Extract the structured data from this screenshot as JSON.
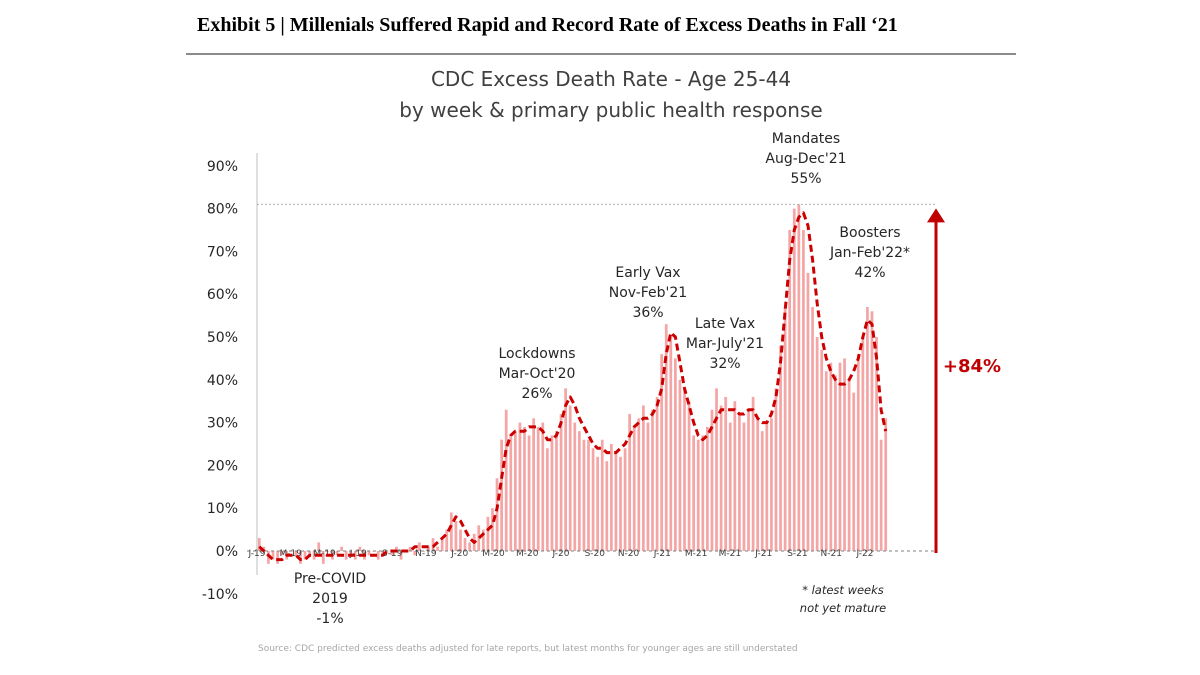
{
  "exhibit_title": "Exhibit 5 | Millenials Suffered Rapid and Record Rate of Excess Deaths in Fall ‘21",
  "colors": {
    "bars": "#f4a6a6",
    "line": "#cc0000",
    "arrow": "#c00000",
    "axis": "#808080"
  },
  "chart_data": {
    "type": "bar",
    "title": "CDC Excess Death Rate - Age 25-44",
    "subtitle": "by week & primary public health response",
    "y_ticks": [
      "90%",
      "80%",
      "70%",
      "60%",
      "50%",
      "40%",
      "30%",
      "20%",
      "10%",
      "0%",
      "-10%"
    ],
    "ylim": [
      -10,
      90
    ],
    "x_tick_labels": [
      "J-19",
      "M-19",
      "M-19",
      "J-19",
      "S-19",
      "N-19",
      "J-20",
      "M-20",
      "M-20",
      "J-20",
      "S-20",
      "N-20",
      "J-21",
      "M-21",
      "M-21",
      "J-21",
      "S-21",
      "N-21",
      "J-22"
    ],
    "series": [
      {
        "name": "weekly excess death rate (%)",
        "values": [
          3,
          1,
          -3,
          -2,
          -3,
          -1,
          -2,
          0,
          -1,
          -3,
          -2,
          -1,
          -2,
          2,
          -3,
          0,
          -2,
          -1,
          1,
          -2,
          -1,
          -2,
          1,
          -2,
          -1,
          0,
          -2,
          -1,
          0,
          -1,
          1,
          -2,
          0,
          1,
          -1,
          2,
          0,
          1,
          3,
          1,
          3,
          5,
          9,
          7,
          5,
          3,
          2,
          4,
          6,
          5,
          8,
          10,
          17,
          26,
          33,
          27,
          28,
          30,
          29,
          27,
          31,
          29,
          30,
          24,
          27,
          28,
          32,
          38,
          34,
          30,
          28,
          26,
          26,
          24,
          22,
          26,
          21,
          25,
          23,
          22,
          24,
          32,
          29,
          31,
          34,
          30,
          33,
          36,
          46,
          53,
          50,
          45,
          40,
          38,
          35,
          27,
          26,
          27,
          29,
          33,
          38,
          34,
          36,
          30,
          35,
          32,
          30,
          33,
          36,
          31,
          28,
          30,
          31,
          38,
          48,
          57,
          75,
          80,
          81,
          75,
          65,
          57,
          50,
          47,
          42,
          44,
          41,
          44,
          45,
          40,
          37,
          46,
          50,
          57,
          56,
          50,
          26,
          31
        ]
      },
      {
        "name": "trend (dashed)",
        "values": [
          1,
          0,
          -1,
          -2,
          -2,
          -2,
          -1,
          -1,
          -1,
          -2,
          -2,
          -1,
          -1,
          -1,
          -1,
          -1,
          -1,
          -1,
          -1,
          -1,
          -1,
          -1,
          -1,
          -1,
          -1,
          -1,
          -1,
          -1,
          0,
          0,
          0,
          0,
          0,
          0,
          1,
          1,
          1,
          1,
          1,
          2,
          3,
          4,
          6,
          8,
          7,
          5,
          3,
          2,
          3,
          4,
          5,
          6,
          10,
          17,
          24,
          27,
          28,
          28,
          28,
          29,
          29,
          29,
          28,
          26,
          26,
          27,
          30,
          34,
          36,
          34,
          31,
          29,
          27,
          25,
          24,
          24,
          23,
          23,
          23,
          24,
          25,
          27,
          29,
          30,
          31,
          31,
          32,
          34,
          38,
          46,
          51,
          50,
          44,
          38,
          34,
          30,
          27,
          26,
          27,
          29,
          31,
          33,
          33,
          33,
          33,
          32,
          32,
          33,
          33,
          31,
          30,
          30,
          32,
          36,
          44,
          56,
          68,
          75,
          78,
          79,
          76,
          68,
          58,
          50,
          45,
          42,
          40,
          39,
          39,
          40,
          42,
          45,
          50,
          54,
          53,
          45,
          33,
          28
        ]
      }
    ],
    "annotations": [
      {
        "lines": [
          "Pre-COVID",
          "2019",
          "-1%"
        ]
      },
      {
        "lines": [
          "Lockdowns",
          "Mar-Oct'20",
          "26%"
        ]
      },
      {
        "lines": [
          "Early Vax",
          "Nov-Feb'21",
          "36%"
        ]
      },
      {
        "lines": [
          "Late Vax",
          "Mar-July'21",
          "32%"
        ]
      },
      {
        "lines": [
          "Mandates",
          "Aug-Dec'21",
          "55%"
        ]
      },
      {
        "lines": [
          "Boosters",
          "Jan-Feb'22*",
          "42%"
        ]
      }
    ],
    "change_label": "+84%",
    "footnote": [
      "* latest weeks",
      "not yet mature"
    ],
    "source": "Source: CDC predicted excess deaths adjusted for late reports, but latest months for younger ages are still understated"
  }
}
